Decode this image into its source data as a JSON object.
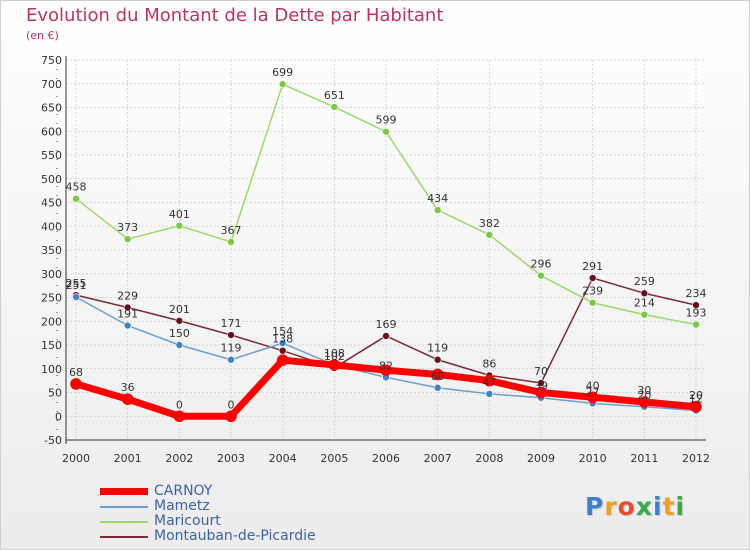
{
  "title": "Evolution du Montant de la Dette par Habitant",
  "unit": "(en €)",
  "logo": {
    "text": "Proxiti",
    "colors": [
      "#3a7fd4",
      "#f0a020",
      "#e0502a",
      "#39a84a",
      "#3a7fd4",
      "#f0a020",
      "#39a84a"
    ]
  },
  "chart_data": {
    "type": "line",
    "title": "Evolution du Montant de la Dette par Habitant",
    "ylabel": "(en €)",
    "xlabel": "",
    "categories": [
      "2000",
      "2001",
      "2002",
      "2003",
      "2004",
      "2005",
      "2006",
      "2007",
      "2008",
      "2009",
      "2010",
      "2011",
      "2012"
    ],
    "ylim": [
      -50,
      750
    ],
    "yticks": [
      "-50",
      "0",
      "50",
      "100",
      "150",
      "200",
      "250",
      "300",
      "350",
      "400",
      "450",
      "500",
      "550",
      "600",
      "650",
      "700",
      "750"
    ],
    "grid": true,
    "legend_position": "bottom-left",
    "series": [
      {
        "name": "CARNOY",
        "color": "#ff0000",
        "marker": "#ff0000",
        "width": 7,
        "values": [
          68,
          36,
          0,
          0,
          118,
          108,
          97,
          88,
          75,
          50,
          40,
          30,
          20
        ],
        "labels": [
          "68",
          "36",
          "0",
          "0",
          "",
          "",
          "",
          "",
          "",
          "",
          "40",
          "30",
          "20"
        ]
      },
      {
        "name": "Mametz",
        "color": "#6a9fd0",
        "marker": "#3e82c8",
        "width": 1.5,
        "values": [
          251,
          191,
          150,
          119,
          154,
          108,
          82,
          60,
          47,
          39,
          27,
          20,
          12
        ],
        "labels": [
          "251",
          "191",
          "150",
          "119",
          "154",
          "108",
          "82",
          "60",
          "47",
          "39",
          "27",
          "20",
          "12"
        ]
      },
      {
        "name": "Maricourt",
        "color": "#9ed86a",
        "marker": "#78c840",
        "width": 1.5,
        "values": [
          458,
          373,
          401,
          367,
          699,
          651,
          599,
          434,
          382,
          296,
          239,
          214,
          193
        ],
        "labels": [
          "458",
          "373",
          "401",
          "367",
          "699",
          "651",
          "599",
          "434",
          "382",
          "296",
          "239",
          "214",
          "193"
        ]
      },
      {
        "name": "Montauban-de-Picardie",
        "color": "#7a2b35",
        "marker": "#6a0e1a",
        "width": 1.5,
        "values": [
          255,
          229,
          201,
          171,
          138,
          102,
          169,
          119,
          86,
          70,
          291,
          259,
          234
        ],
        "labels": [
          "255",
          "229",
          "201",
          "171",
          "138",
          "102",
          "169",
          "119",
          "86",
          "70",
          "291",
          "259",
          "234"
        ]
      }
    ]
  }
}
